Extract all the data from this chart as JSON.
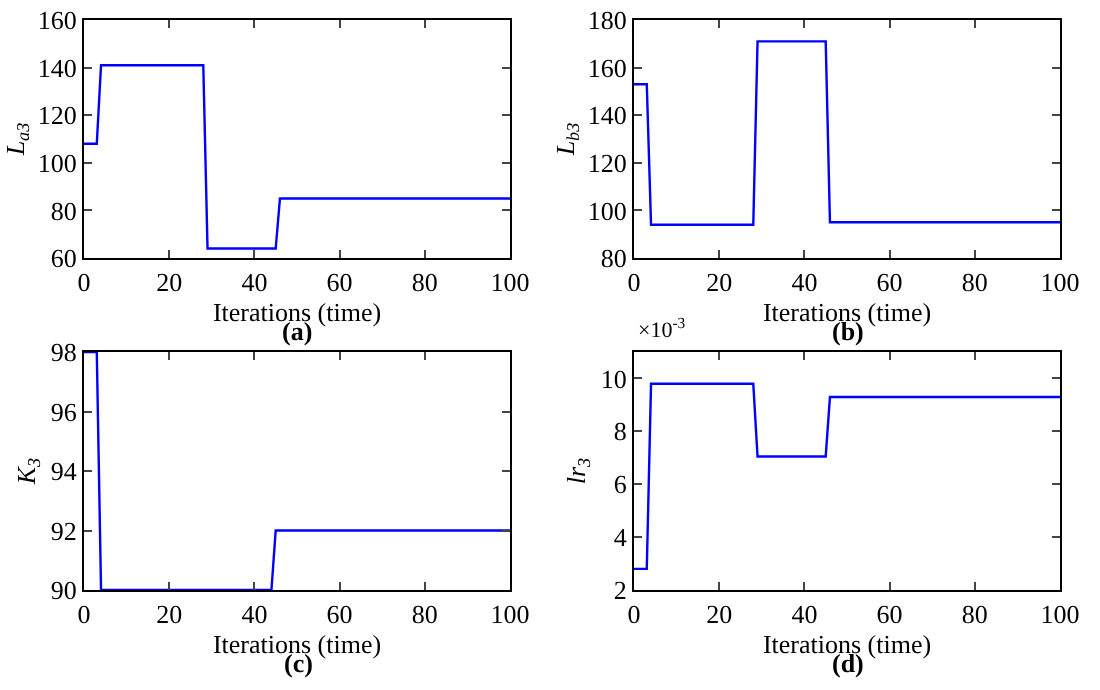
{
  "chart_data": [
    {
      "type": "line",
      "xlabel": "Iterations (time)",
      "ylabel": "L$_{a3}$",
      "annotations": [
        "(a)"
      ],
      "xlim": [
        0,
        100
      ],
      "xticks": [
        0,
        20,
        40,
        60,
        80,
        100
      ],
      "ylim": [
        60,
        160
      ],
      "yticks": [
        60,
        80,
        100,
        120,
        140,
        160
      ],
      "grid": false,
      "legend": false,
      "marker": "none",
      "line_style": "solid",
      "series": [
        {
          "color": "#0000ff",
          "x": [
            0,
            3,
            4,
            28,
            29,
            45,
            46,
            100
          ],
          "values": [
            108,
            108,
            141,
            141,
            64,
            64,
            85,
            85
          ]
        }
      ]
    },
    {
      "type": "line",
      "xlabel": "Iterations (time)",
      "ylabel": "L$_{b3}$",
      "annotations": [
        "(b)"
      ],
      "xlim": [
        0,
        100
      ],
      "xticks": [
        0,
        20,
        40,
        60,
        80,
        100
      ],
      "ylim": [
        80,
        180
      ],
      "yticks": [
        80,
        100,
        120,
        140,
        160,
        180
      ],
      "grid": false,
      "legend": false,
      "marker": "none",
      "line_style": "solid",
      "series": [
        {
          "color": "#0000ff",
          "x": [
            0,
            3,
            4,
            28,
            29,
            45,
            46,
            100
          ],
          "values": [
            153,
            153,
            94,
            94,
            171,
            171,
            95,
            95
          ]
        }
      ]
    },
    {
      "type": "line",
      "xlabel": "Iterations (time)",
      "ylabel": "K$_{3}$",
      "annotations": [
        "(c)"
      ],
      "xlim": [
        0,
        100
      ],
      "xticks": [
        0,
        20,
        40,
        60,
        80,
        100
      ],
      "ylim": [
        90,
        98
      ],
      "yticks": [
        90,
        92,
        94,
        96,
        98
      ],
      "grid": false,
      "legend": false,
      "marker": "none",
      "line_style": "solid",
      "series": [
        {
          "color": "#0000ff",
          "x": [
            0,
            3,
            4,
            44,
            45,
            100
          ],
          "values": [
            98,
            98,
            90,
            90,
            92,
            92
          ]
        }
      ]
    },
    {
      "type": "line",
      "xlabel": "Iterations (time)",
      "ylabel": "lr$_{3}$",
      "annotations": [
        "×10$^{-3}$",
        "(d)"
      ],
      "xlim": [
        0,
        100
      ],
      "xticks": [
        0,
        20,
        40,
        60,
        80,
        100
      ],
      "ylim": [
        2,
        11
      ],
      "yticks": [
        2,
        4,
        6,
        8,
        10
      ],
      "grid": false,
      "legend": false,
      "marker": "none",
      "line_style": "solid",
      "series": [
        {
          "color": "#0000ff",
          "x": [
            0,
            3,
            4,
            28,
            29,
            45,
            46,
            100
          ],
          "values": [
            2.8,
            2.8,
            9.8,
            9.8,
            7.05,
            7.05,
            9.3,
            9.3
          ]
        }
      ]
    }
  ]
}
